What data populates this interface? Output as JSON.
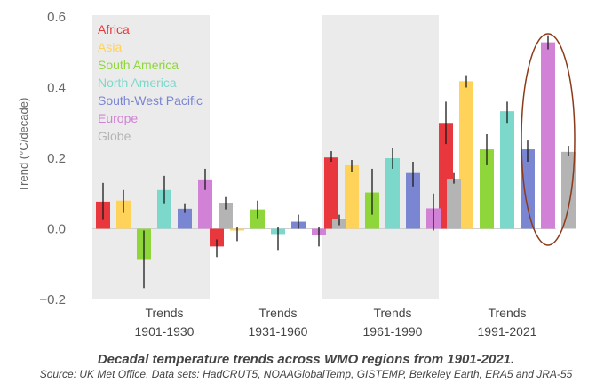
{
  "chart_data": {
    "type": "bar",
    "ylabel": "Trend (°C/decade)",
    "ylim": [
      -0.2,
      0.6
    ],
    "yticks": [
      "−0.2",
      "0.0",
      "0.2",
      "0.4",
      "0.6"
    ],
    "yticks_values": [
      -0.2,
      0.0,
      0.2,
      0.4,
      0.6
    ],
    "grid": false,
    "legend_position": "top-left",
    "group_label_prefix": "Trends",
    "categories": [
      "1901-1930",
      "1931-1960",
      "1961-1990",
      "1991-2021"
    ],
    "shaded_groups": [
      0,
      2
    ],
    "highlight": {
      "group": 3,
      "series": "Europe",
      "shape": "ellipse",
      "color": "#8B3A1A"
    },
    "series": [
      {
        "name": "Africa",
        "color": "#E8383D",
        "values": [
          0.077,
          -0.05,
          0.202,
          0.3
        ],
        "err": [
          [
            0.025,
            0.13
          ],
          [
            -0.08,
            -0.03
          ],
          [
            0.19,
            0.22
          ],
          [
            0.24,
            0.36
          ]
        ]
      },
      {
        "name": "Asia",
        "color": "#FFD35A",
        "values": [
          0.08,
          -0.005,
          0.18,
          0.418
        ],
        "err": [
          [
            0.045,
            0.11
          ],
          [
            -0.035,
            0.005
          ],
          [
            0.16,
            0.195
          ],
          [
            0.4,
            0.435
          ]
        ]
      },
      {
        "name": "South America",
        "color": "#8FD63A",
        "values": [
          -0.088,
          0.055,
          0.103,
          0.225
        ],
        "err": [
          [
            -0.168,
            -0.005
          ],
          [
            0.03,
            0.08
          ],
          [
            0.04,
            0.17
          ],
          [
            0.18,
            0.268
          ]
        ]
      },
      {
        "name": "North America",
        "color": "#7DD8CC",
        "values": [
          0.11,
          -0.015,
          0.2,
          0.333
        ],
        "err": [
          [
            0.07,
            0.15
          ],
          [
            -0.06,
            0.005
          ],
          [
            0.17,
            0.228
          ],
          [
            0.3,
            0.36
          ]
        ]
      },
      {
        "name": "South-West Pacific",
        "color": "#7B86D2",
        "values": [
          0.057,
          0.02,
          0.158,
          0.225
        ],
        "err": [
          [
            0.045,
            0.07
          ],
          [
            0.0,
            0.04
          ],
          [
            0.12,
            0.19
          ],
          [
            0.19,
            0.25
          ]
        ]
      },
      {
        "name": "Europe",
        "color": "#D282D6",
        "values": [
          0.14,
          -0.018,
          0.058,
          0.528
        ],
        "err": [
          [
            0.11,
            0.17
          ],
          [
            -0.05,
            0.005
          ],
          [
            -0.005,
            0.1
          ],
          [
            0.508,
            0.548
          ]
        ]
      },
      {
        "name": "Globe",
        "color": "#B4B4B4",
        "values": [
          0.072,
          0.028,
          0.142,
          0.218
        ],
        "err": [
          [
            0.055,
            0.09
          ],
          [
            0.01,
            0.04
          ],
          [
            0.128,
            0.158
          ],
          [
            0.205,
            0.235
          ]
        ]
      }
    ]
  },
  "caption": {
    "title": "Decadal temperature trends across WMO regions from 1901-2021.",
    "source": "Source: UK Met Office. Data sets: HadCRUT5, NOAAGlobalTemp, GISTEMP, Berkeley Earth, ERA5 and JRA-55"
  }
}
